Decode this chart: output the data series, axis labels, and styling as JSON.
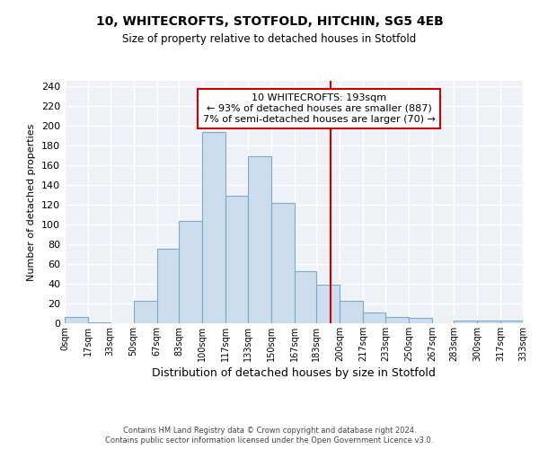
{
  "title1": "10, WHITECROFTS, STOTFOLD, HITCHIN, SG5 4EB",
  "title2": "Size of property relative to detached houses in Stotfold",
  "xlabel": "Distribution of detached houses by size in Stotfold",
  "ylabel": "Number of detached properties",
  "bin_edges": [
    0,
    17,
    33,
    50,
    67,
    83,
    100,
    117,
    133,
    150,
    167,
    183,
    200,
    217,
    233,
    250,
    267,
    283,
    300,
    317,
    333
  ],
  "bin_heights": [
    6,
    1,
    0,
    23,
    75,
    103,
    193,
    129,
    169,
    122,
    53,
    39,
    23,
    11,
    6,
    5,
    0,
    3,
    3,
    3
  ],
  "tick_labels": [
    "0sqm",
    "17sqm",
    "33sqm",
    "50sqm",
    "67sqm",
    "83sqm",
    "100sqm",
    "117sqm",
    "133sqm",
    "150sqm",
    "167sqm",
    "183sqm",
    "200sqm",
    "217sqm",
    "233sqm",
    "250sqm",
    "267sqm",
    "283sqm",
    "300sqm",
    "317sqm",
    "333sqm"
  ],
  "bar_color": "#ccdded",
  "bar_edge_color": "#7aaac8",
  "vline_x": 193,
  "vline_color": "#cc0000",
  "annotation_title": "10 WHITECROFTS: 193sqm",
  "annotation_line1": "← 93% of detached houses are smaller (887)",
  "annotation_line2": "7% of semi-detached houses are larger (70) →",
  "annotation_box_facecolor": "#ffffff",
  "annotation_box_edgecolor": "#cc0000",
  "ylim": [
    0,
    245
  ],
  "yticks": [
    0,
    20,
    40,
    60,
    80,
    100,
    120,
    140,
    160,
    180,
    200,
    220,
    240
  ],
  "footer1": "Contains HM Land Registry data © Crown copyright and database right 2024.",
  "footer2": "Contains public sector information licensed under the Open Government Licence v3.0.",
  "background_color": "#eef2f7",
  "grid_color": "#ffffff",
  "title1_fontsize": 10,
  "title2_fontsize": 8.5,
  "xlabel_fontsize": 9,
  "ylabel_fontsize": 8,
  "tick_fontsize": 7,
  "ytick_fontsize": 8,
  "footer_fontsize": 6,
  "annot_fontsize": 8
}
